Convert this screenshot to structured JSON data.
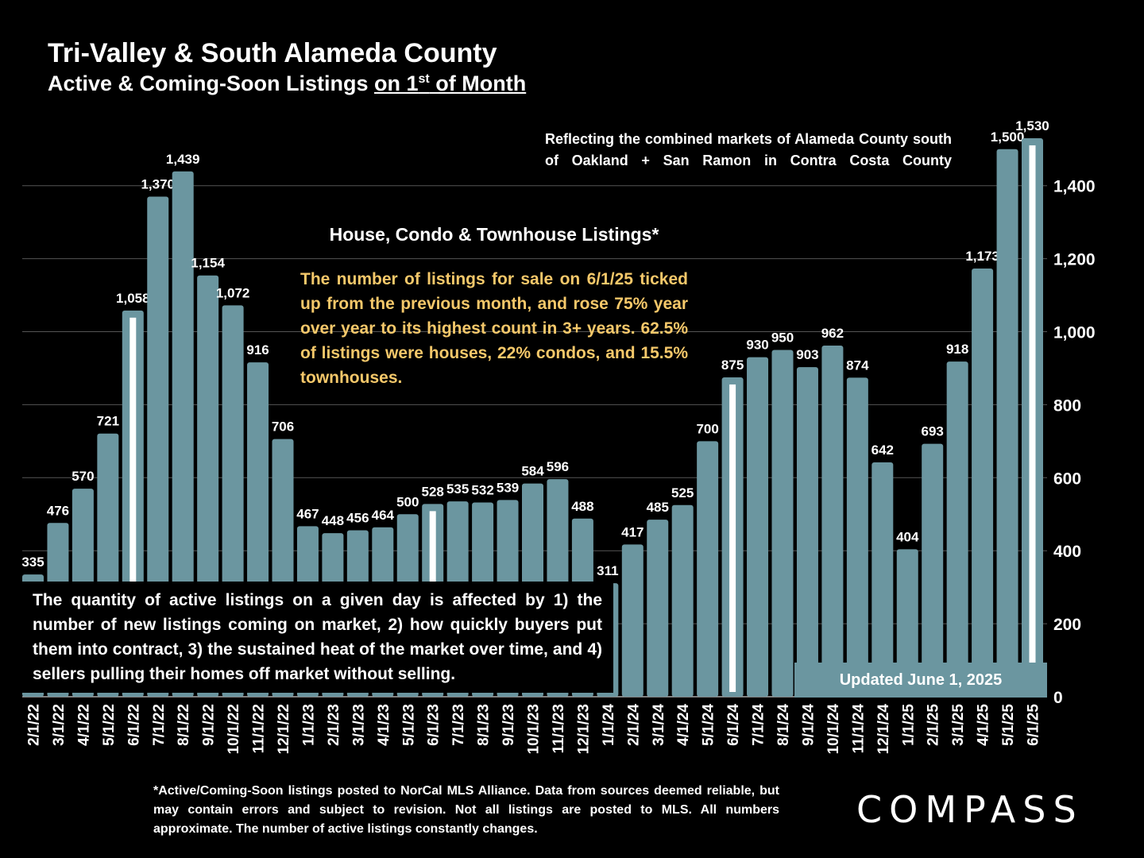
{
  "header": {
    "title": "Tri-Valley & South Alameda County",
    "subtitle_prefix": "Active & Coming-Soon Listings ",
    "subtitle_underlined_a": "on 1",
    "subtitle_sup": "st",
    "subtitle_underlined_b": " of Month"
  },
  "market_note": "Reflecting the combined markets of Alameda County south of Oakland + San Ramon in Contra Costa County",
  "callout": {
    "heading": "House, Condo & Townhouse Listings*",
    "text": "The number of listings for sale on 6/1/25 ticked up from the previous month, and rose 75% year over year to its highest count in 3+ years. 62.5% of listings were houses, 22% condos, and 15.5% townhouses.",
    "text_color": "#f5c86a"
  },
  "quantity_note": "The quantity of active listings on a given day is affected by 1) the number of new listings coming on market, 2) how quickly buyers put them into contract, 3) the sustained heat of the market over time, and 4) sellers pulling their homes off market without selling.",
  "updated": "Updated June 1, 2025",
  "footnote": "*Active/Coming-Soon listings posted to NorCal MLS Alliance. Data from sources deemed reliable, but may contain errors and subject to revision. Not all listings are posted to MLS. All numbers approximate. The number of active listings constantly changes.",
  "logo": "COMPASS",
  "colors": {
    "bar": "#6b96a0",
    "background": "#000000",
    "highlight": "#ffffff",
    "gridline": "#555555"
  },
  "chart_data": {
    "type": "bar",
    "categories": [
      "2/1/22",
      "3/1/22",
      "4/1/22",
      "5/1/22",
      "6/1/22",
      "7/1/22",
      "8/1/22",
      "9/1/22",
      "10/1/22",
      "11/1/22",
      "12/1/22",
      "1/1/23",
      "2/1/23",
      "3/1/23",
      "4/1/23",
      "5/1/23",
      "6/1/23",
      "7/1/23",
      "8/1/23",
      "9/1/23",
      "10/1/23",
      "11/1/23",
      "12/1/23",
      "1/1/24",
      "2/1/24",
      "3/1/24",
      "4/1/24",
      "5/1/24",
      "6/1/24",
      "7/1/24",
      "8/1/24",
      "9/1/24",
      "10/1/24",
      "11/1/24",
      "12/1/24",
      "1/1/25",
      "2/1/25",
      "3/1/25",
      "4/1/25",
      "5/1/25",
      "6/1/25"
    ],
    "values": [
      335,
      476,
      570,
      721,
      1058,
      1370,
      1439,
      1154,
      1072,
      916,
      706,
      467,
      448,
      456,
      464,
      500,
      528,
      535,
      532,
      539,
      584,
      596,
      488,
      311,
      417,
      485,
      525,
      700,
      875,
      930,
      950,
      903,
      962,
      874,
      642,
      404,
      693,
      918,
      1173,
      1500,
      1530
    ],
    "value_labels": [
      "335",
      "476",
      "570",
      "721",
      "1,058",
      "1,370",
      "1,439",
      "1,154",
      "1,072",
      "916",
      "706",
      "467",
      "448",
      "456",
      "464",
      "500",
      "528",
      "535",
      "532",
      "539",
      "584",
      "596",
      "488",
      "311",
      "417",
      "485",
      "525",
      "700",
      "875",
      "930",
      "950",
      "903",
      "962",
      "874",
      "642",
      "404",
      "693",
      "918",
      "1,173",
      "1,500",
      "1,530"
    ],
    "highlighted": [
      "6/1/22",
      "6/1/23",
      "6/1/24",
      "6/1/25"
    ],
    "ylim": [
      0,
      1600
    ],
    "yticks": [
      0,
      200,
      400,
      600,
      800,
      1000,
      1200,
      1400
    ],
    "ytick_labels": [
      "0",
      "200",
      "400",
      "600",
      "800",
      "1,000",
      "1,200",
      "1,400"
    ],
    "y_axis_side": "right",
    "grid": true
  }
}
